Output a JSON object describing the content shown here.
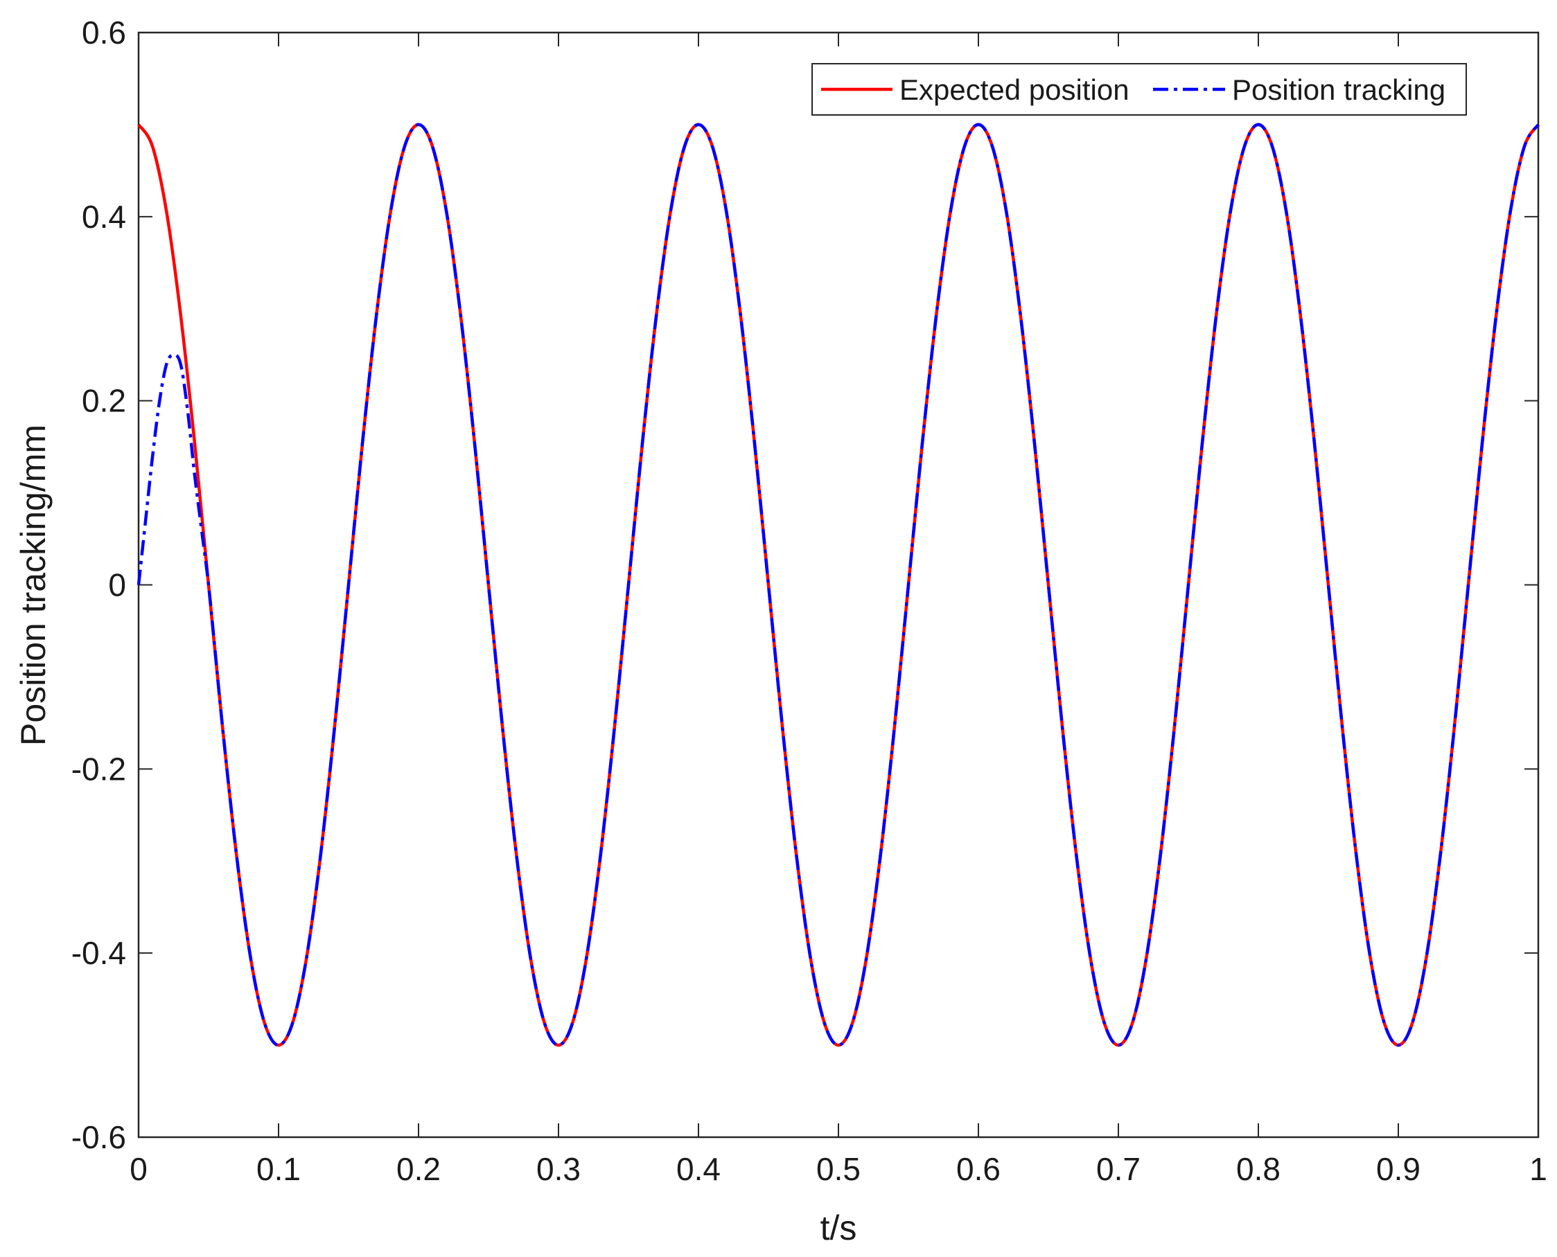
{
  "chart_data": {
    "type": "line",
    "title": "",
    "xlabel": "t/s",
    "ylabel": "Position tracking/mm",
    "xlim": [
      0,
      1
    ],
    "ylim": [
      -0.6,
      0.6
    ],
    "xticks": [
      0,
      0.1,
      0.2,
      0.3,
      0.4,
      0.5,
      0.6,
      0.7,
      0.8,
      0.9,
      1
    ],
    "xtick_labels": [
      "0",
      "0.1",
      "0.2",
      "0.3",
      "0.4",
      "0.5",
      "0.6",
      "0.7",
      "0.8",
      "0.9",
      "1"
    ],
    "yticks": [
      -0.6,
      -0.4,
      -0.2,
      0,
      0.2,
      0.4,
      0.6
    ],
    "ytick_labels": [
      "-0.6",
      "-0.4",
      "-0.2",
      "0",
      "0.2",
      "0.4",
      "0.6"
    ],
    "grid": false,
    "legend_position": "top-right",
    "series": [
      {
        "name": "Expected position",
        "color": "#ff0000",
        "style": "solid",
        "x": [
          0,
          0.01,
          0.02,
          0.03,
          0.04,
          0.05,
          0.06,
          0.07,
          0.08,
          0.09,
          0.1,
          0.11,
          0.12,
          0.13,
          0.14,
          0.15,
          0.16,
          0.17,
          0.18,
          0.19,
          0.2,
          0.21,
          0.22,
          0.23,
          0.24,
          0.25,
          0.26,
          0.27,
          0.28,
          0.29,
          0.3,
          0.31,
          0.32,
          0.33,
          0.34,
          0.35,
          0.36,
          0.37,
          0.38,
          0.39,
          0.4,
          0.41,
          0.42,
          0.43,
          0.44,
          0.45,
          0.46,
          0.47,
          0.48,
          0.49,
          0.5,
          0.51,
          0.52,
          0.53,
          0.54,
          0.55,
          0.56,
          0.57,
          0.58,
          0.59,
          0.6,
          0.61,
          0.62,
          0.63,
          0.64,
          0.65,
          0.66,
          0.67,
          0.68,
          0.69,
          0.7,
          0.71,
          0.72,
          0.73,
          0.74,
          0.75,
          0.76,
          0.77,
          0.78,
          0.79,
          0.8,
          0.81,
          0.82,
          0.83,
          0.84,
          0.85,
          0.86,
          0.87,
          0.88,
          0.89,
          0.9,
          0.91,
          0.92,
          0.93,
          0.94,
          0.95,
          0.96,
          0.97,
          0.98,
          0.99,
          1
        ],
        "y": [
          0.5,
          0.476,
          0.405,
          0.294,
          0.155,
          0,
          -0.155,
          -0.294,
          -0.405,
          -0.476,
          -0.5,
          -0.476,
          -0.405,
          -0.294,
          -0.155,
          0,
          0.155,
          0.294,
          0.405,
          0.476,
          0.5,
          0.476,
          0.405,
          0.294,
          0.155,
          0,
          -0.155,
          -0.294,
          -0.405,
          -0.476,
          -0.5,
          -0.476,
          -0.405,
          -0.294,
          -0.155,
          0,
          0.155,
          0.294,
          0.405,
          0.476,
          0.5,
          0.476,
          0.405,
          0.294,
          0.155,
          0,
          -0.155,
          -0.294,
          -0.405,
          -0.476,
          -0.5,
          -0.476,
          -0.405,
          -0.294,
          -0.155,
          0,
          0.155,
          0.294,
          0.405,
          0.476,
          0.5,
          0.476,
          0.405,
          0.294,
          0.155,
          0,
          -0.155,
          -0.294,
          -0.405,
          -0.476,
          -0.5,
          -0.476,
          -0.405,
          -0.294,
          -0.155,
          0,
          0.155,
          0.294,
          0.405,
          0.476,
          0.5,
          0.476,
          0.405,
          0.294,
          0.155,
          0,
          -0.155,
          -0.294,
          -0.405,
          -0.476,
          -0.5,
          -0.476,
          -0.405,
          -0.294,
          -0.155,
          0,
          0.155,
          0.294,
          0.405,
          0.476,
          0.5
        ]
      },
      {
        "name": "Position tracking",
        "color": "#0000ff",
        "style": "dashdot",
        "x": [
          0,
          0.005,
          0.01,
          0.015,
          0.02,
          0.025,
          0.03,
          0.035,
          0.04,
          0.045,
          0.05,
          0.055,
          0.06,
          0.07,
          0.08,
          0.09,
          0.1,
          0.11,
          0.12,
          0.13,
          0.14,
          0.15,
          0.16,
          0.17,
          0.18,
          0.19,
          0.2,
          0.21,
          0.22,
          0.23,
          0.24,
          0.25,
          0.26,
          0.27,
          0.28,
          0.29,
          0.3,
          0.31,
          0.32,
          0.33,
          0.34,
          0.35,
          0.36,
          0.37,
          0.38,
          0.39,
          0.4,
          0.41,
          0.42,
          0.43,
          0.44,
          0.45,
          0.46,
          0.47,
          0.48,
          0.49,
          0.5,
          0.51,
          0.52,
          0.53,
          0.54,
          0.55,
          0.56,
          0.57,
          0.58,
          0.59,
          0.6,
          0.61,
          0.62,
          0.63,
          0.64,
          0.65,
          0.66,
          0.67,
          0.68,
          0.69,
          0.7,
          0.71,
          0.72,
          0.73,
          0.74,
          0.75,
          0.76,
          0.77,
          0.78,
          0.79,
          0.8,
          0.81,
          0.82,
          0.83,
          0.84,
          0.85,
          0.86,
          0.87,
          0.88,
          0.89,
          0.9,
          0.91,
          0.92,
          0.93,
          0.94,
          0.95,
          0.96,
          0.97,
          0.98,
          0.99,
          1
        ],
        "y": [
          0,
          0.07,
          0.14,
          0.2,
          0.24,
          0.25,
          0.24,
          0.19,
          0.12,
          0.06,
          0.0,
          -0.077,
          -0.155,
          -0.294,
          -0.405,
          -0.476,
          -0.5,
          -0.476,
          -0.405,
          -0.294,
          -0.155,
          0,
          0.155,
          0.294,
          0.405,
          0.476,
          0.5,
          0.476,
          0.405,
          0.294,
          0.155,
          0,
          -0.155,
          -0.294,
          -0.405,
          -0.476,
          -0.5,
          -0.476,
          -0.405,
          -0.294,
          -0.155,
          0,
          0.155,
          0.294,
          0.405,
          0.476,
          0.5,
          0.476,
          0.405,
          0.294,
          0.155,
          0,
          -0.155,
          -0.294,
          -0.405,
          -0.476,
          -0.5,
          -0.476,
          -0.405,
          -0.294,
          -0.155,
          0,
          0.155,
          0.294,
          0.405,
          0.476,
          0.5,
          0.476,
          0.405,
          0.294,
          0.155,
          0,
          -0.155,
          -0.294,
          -0.405,
          -0.476,
          -0.5,
          -0.476,
          -0.405,
          -0.294,
          -0.155,
          0,
          0.155,
          0.294,
          0.405,
          0.476,
          0.5,
          0.476,
          0.405,
          0.294,
          0.155,
          0,
          -0.155,
          -0.294,
          -0.405,
          -0.476,
          -0.5,
          -0.476,
          -0.405,
          -0.294,
          -0.155,
          0,
          0.155,
          0.294,
          0.405,
          0.476,
          0.5
        ]
      }
    ]
  }
}
